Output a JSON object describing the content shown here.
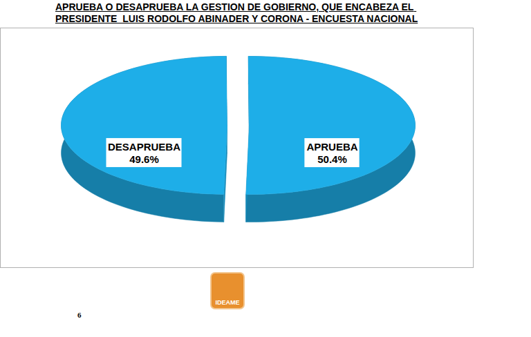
{
  "chart_data": {
    "type": "pie",
    "title": "APRUEBA O DESAPRUEBA LA GESTION DE GOBIERNO, QUE ENCABEZA EL PRESIDENTE  LUIS RODOLFO ABINADER Y CORONA - ENCUESTA NACIONAL",
    "categories": [
      "DESAPRUEBA",
      "APRUEBA"
    ],
    "values": [
      49.6,
      50.4
    ],
    "value_labels": [
      "49.6%",
      "50.4%"
    ],
    "data_labels": true,
    "colors": [
      "#1eaee8",
      "#1eaee8"
    ],
    "annotations": [
      "IDEAME",
      "6"
    ]
  }
}
